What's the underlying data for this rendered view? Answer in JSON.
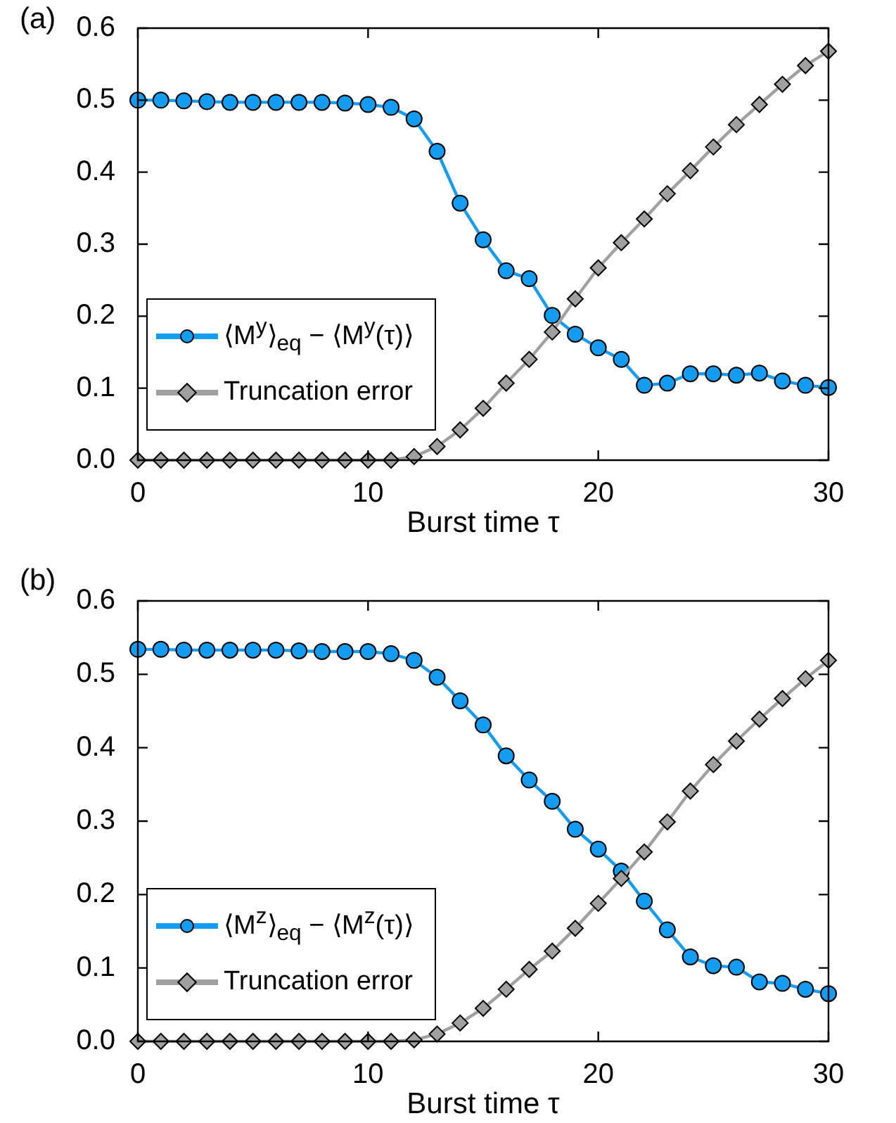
{
  "chart_data": [
    {
      "type": "line",
      "title": "(a)",
      "xlabel": "Burst time τ",
      "legend": "bottom left",
      "grid": false,
      "xlim": [
        0,
        30
      ],
      "xticks": [
        0,
        10,
        20,
        30
      ],
      "ylim": [
        0,
        0.6
      ],
      "yticks": [
        {
          "value": 0,
          "label": "0.0"
        },
        0.1,
        0.2,
        0.3,
        0.4,
        0.5,
        0.6
      ],
      "x": [
        0,
        1,
        2,
        3,
        4,
        5,
        6,
        7,
        8,
        9,
        10,
        11,
        12,
        13,
        14,
        15,
        16,
        17,
        18,
        19,
        20,
        21,
        22,
        23,
        24,
        25,
        26,
        27,
        28,
        29,
        30
      ],
      "series": [
        {
          "name": "⟨M$^{y}$⟩$_{eq}$ − ⟨M$^{y}$(τ)⟩",
          "color": "#139cf0",
          "marker": "circle",
          "values": [
            0.5,
            0.5,
            0.499,
            0.498,
            0.497,
            0.497,
            0.497,
            0.497,
            0.497,
            0.496,
            0.494,
            0.49,
            0.474,
            0.429,
            0.357,
            0.306,
            0.263,
            0.252,
            0.201,
            0.175,
            0.156,
            0.14,
            0.104,
            0.107,
            0.12,
            0.12,
            0.118,
            0.121,
            0.11,
            0.104,
            0.101
          ]
        },
        {
          "name": "Truncation error",
          "color": "#a0a0a0",
          "marker": "diamond",
          "values": [
            0,
            0,
            0,
            0,
            0,
            0,
            0,
            0,
            0,
            0,
            0,
            0,
            0.005,
            0.019,
            0.042,
            0.072,
            0.107,
            0.14,
            0.178,
            0.224,
            0.267,
            0.302,
            0.335,
            0.37,
            0.402,
            0.435,
            0.466,
            0.494,
            0.522,
            0.548,
            0.568
          ]
        }
      ]
    },
    {
      "type": "line",
      "title": "(b)",
      "xlabel": "Burst time τ",
      "legend": "bottom left",
      "grid": false,
      "xlim": [
        0,
        30
      ],
      "xticks": [
        0,
        10,
        20,
        30
      ],
      "ylim": [
        0,
        0.6
      ],
      "yticks": [
        {
          "value": 0,
          "label": "0.0"
        },
        0.1,
        0.2,
        0.3,
        0.4,
        0.5,
        0.6
      ],
      "x": [
        0,
        1,
        2,
        3,
        4,
        5,
        6,
        7,
        8,
        9,
        10,
        11,
        12,
        13,
        14,
        15,
        16,
        17,
        18,
        19,
        20,
        21,
        22,
        23,
        24,
        25,
        26,
        27,
        28,
        29,
        30
      ],
      "series": [
        {
          "name": "⟨M$^{z}$⟩$_{eq}$ − ⟨M$^{z}$(τ)⟩",
          "color": "#139cf0",
          "marker": "circle",
          "values": [
            0.534,
            0.534,
            0.533,
            0.533,
            0.533,
            0.533,
            0.533,
            0.532,
            0.531,
            0.531,
            0.531,
            0.528,
            0.519,
            0.496,
            0.464,
            0.431,
            0.389,
            0.356,
            0.327,
            0.289,
            0.262,
            0.232,
            0.191,
            0.152,
            0.115,
            0.103,
            0.101,
            0.081,
            0.079,
            0.071,
            0.065
          ]
        },
        {
          "name": "Truncation error",
          "color": "#a0a0a0",
          "marker": "diamond",
          "values": [
            0,
            0,
            0,
            0,
            0,
            0,
            0,
            0,
            0,
            0,
            0,
            0,
            0.002,
            0.01,
            0.025,
            0.045,
            0.071,
            0.098,
            0.123,
            0.154,
            0.188,
            0.222,
            0.258,
            0.299,
            0.341,
            0.377,
            0.409,
            0.439,
            0.467,
            0.494,
            0.519
          ]
        }
      ]
    }
  ]
}
